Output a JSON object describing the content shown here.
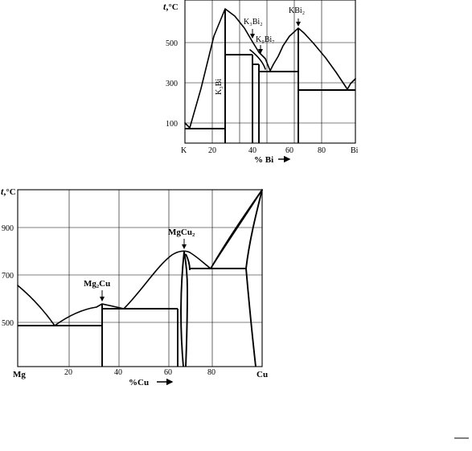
{
  "diagram_top": {
    "t_symbol": "t",
    "t_unit": "°C",
    "y_ticks": [
      "500",
      "300",
      "100"
    ],
    "x_ticks": [
      "20",
      "40",
      "60",
      "80"
    ],
    "x_left": "K",
    "x_right": "Bi",
    "x_label": "% Bi",
    "phases": {
      "k3bi": "K₃Bi",
      "k3bi2": "K₃Bi₂",
      "k9bi7": "K₉Bi₇",
      "kbi2": "KBi₂"
    }
  },
  "diagram_bottom": {
    "t_symbol": "t",
    "t_unit": "°C",
    "y_ticks": [
      "900",
      "700",
      "500"
    ],
    "x_ticks": [
      "20",
      "40",
      "60",
      "80"
    ],
    "x_left": "Mg",
    "x_right": "Cu",
    "x_label": "%Cu",
    "phases": {
      "mg2cu": "Mg₂Cu",
      "mgcu2": "MgCu₂"
    }
  }
}
